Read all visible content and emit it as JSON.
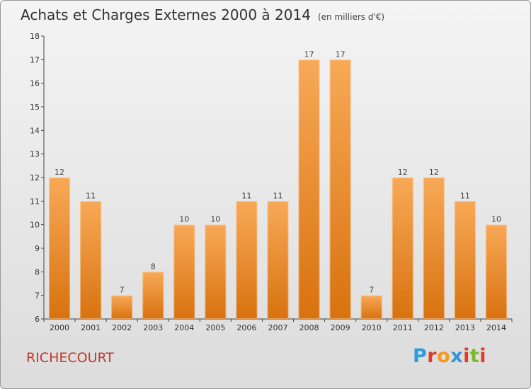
{
  "header": {
    "title": "Achats et Charges Externes 2000 à 2014",
    "subtitle": "(en milliers d'€)"
  },
  "footer": {
    "commune": "RICHECOURT",
    "brand": "Proxiti"
  },
  "colors": {
    "bar_top": "#f8a957",
    "bar_bottom": "#d8720f",
    "commune_text": "#c0392b",
    "logo_letters": [
      "#2e9be0",
      "#e23a2c",
      "#f39a1e",
      "#3a8fd8",
      "#e23a2c",
      "#7ab82e",
      "#e23a2c"
    ]
  },
  "chart_data": {
    "type": "bar",
    "title": "Achats et Charges Externes 2000 à 2014",
    "subtitle": "(en milliers d'€)",
    "categories": [
      "2000",
      "2001",
      "2002",
      "2003",
      "2004",
      "2005",
      "2006",
      "2007",
      "2008",
      "2009",
      "2010",
      "2011",
      "2012",
      "2013",
      "2014"
    ],
    "values": [
      12,
      11,
      7,
      8,
      10,
      10,
      11,
      11,
      17,
      17,
      7,
      12,
      12,
      11,
      10
    ],
    "ylim": [
      6,
      18
    ],
    "yticks": [
      6,
      7,
      8,
      9,
      10,
      11,
      12,
      13,
      14,
      15,
      16,
      17,
      18
    ],
    "grid": false,
    "data_labels": true
  }
}
